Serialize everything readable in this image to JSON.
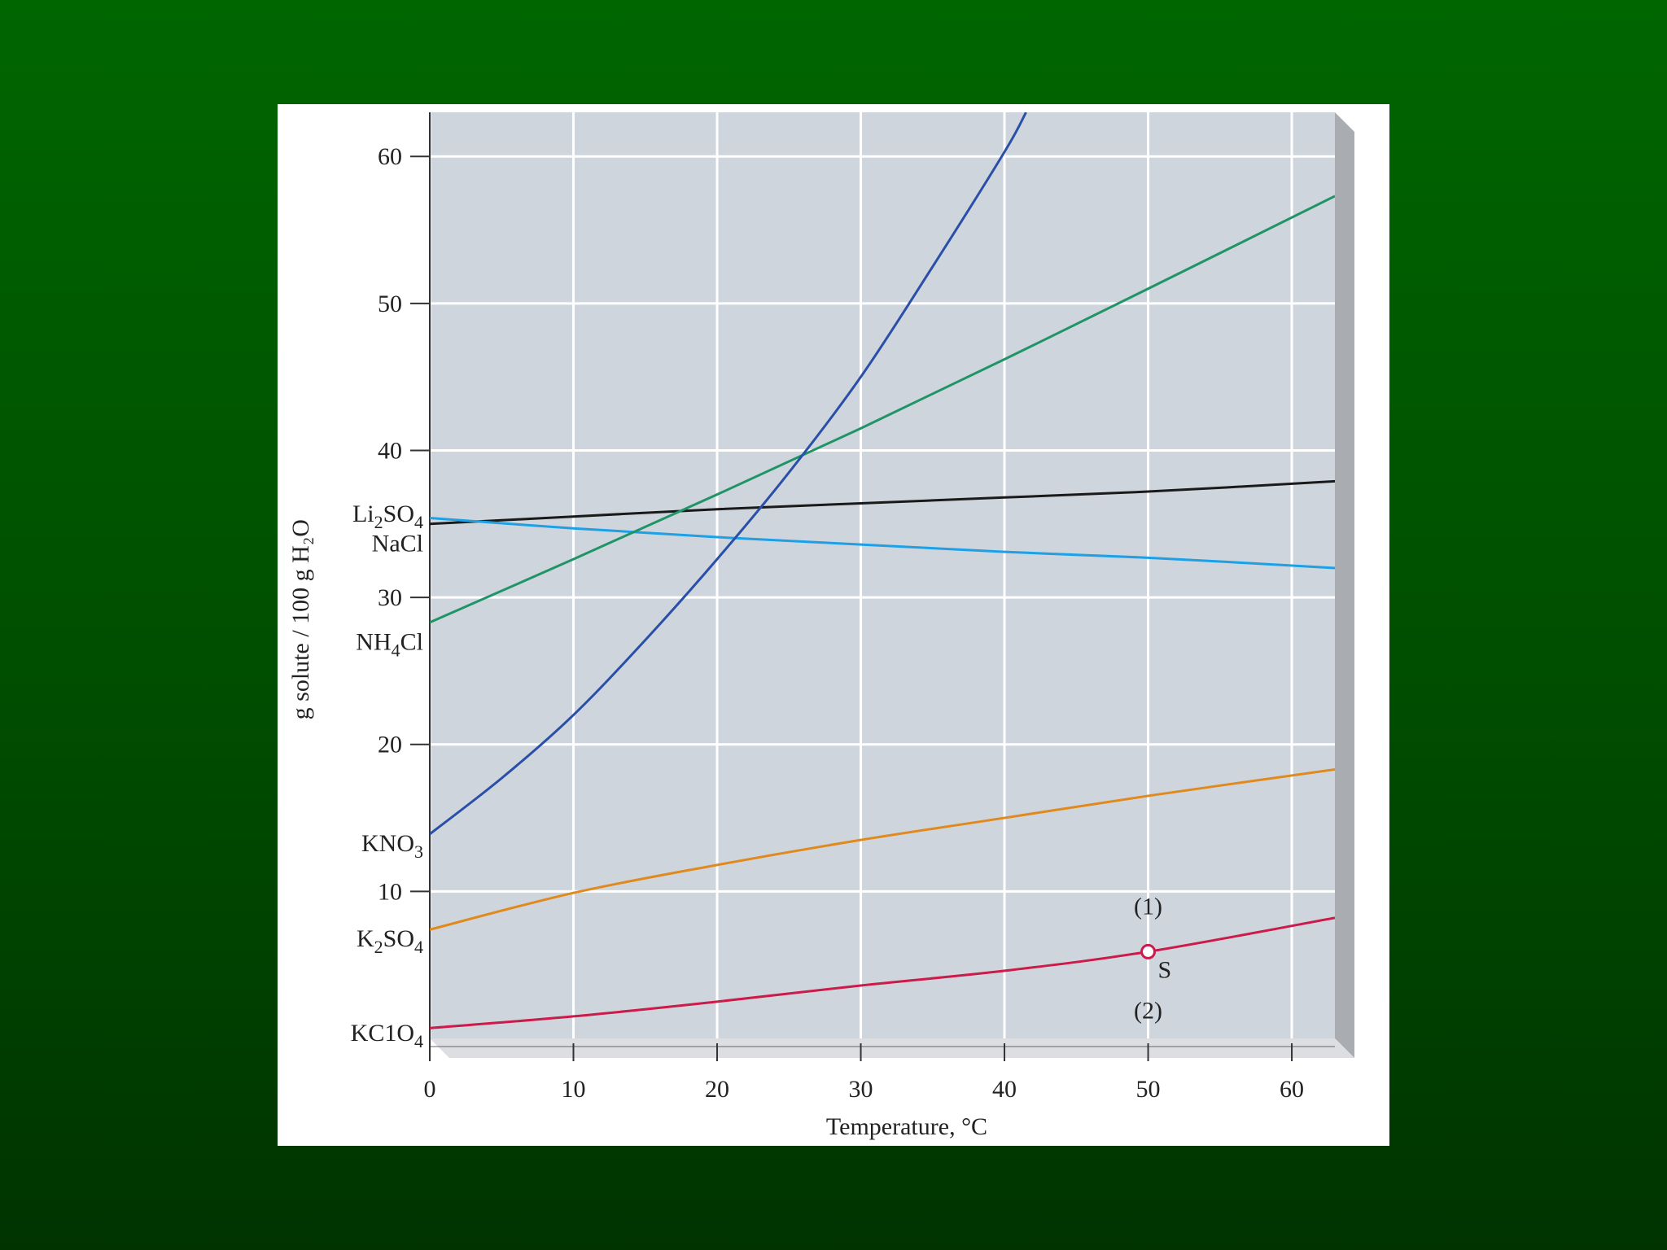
{
  "chart_data": {
    "type": "line",
    "xlabel": "Temperature, °C",
    "ylabel": "g solute / 100 g H₂O",
    "xlim": [
      0,
      63
    ],
    "ylim": [
      0,
      63
    ],
    "xticks": [
      0,
      10,
      20,
      30,
      40,
      50,
      60
    ],
    "yticks": [
      10,
      20,
      30,
      40,
      50,
      60
    ],
    "grid": true,
    "legend": "none (series labeled at left axis)",
    "series": [
      {
        "name": "Li₂SO₄",
        "color": "#1a1a1a",
        "x": [
          0,
          10,
          20,
          30,
          40,
          50,
          63
        ],
        "y": [
          35.0,
          35.5,
          36.0,
          36.4,
          36.8,
          37.2,
          37.9
        ]
      },
      {
        "name": "NaCl",
        "color": "#1ea0e6",
        "x": [
          0,
          10,
          20,
          30,
          40,
          50,
          63
        ],
        "y": [
          35.4,
          34.7,
          34.1,
          33.6,
          33.1,
          32.7,
          32.0
        ]
      },
      {
        "name": "NH₄Cl",
        "color": "#1f9466",
        "x": [
          0,
          10,
          20,
          30,
          40,
          50,
          63
        ],
        "y": [
          28.3,
          32.6,
          37.0,
          41.5,
          46.2,
          51.0,
          57.3
        ]
      },
      {
        "name": "KNO₃",
        "color": "#2a4fa8",
        "x": [
          0,
          5,
          10,
          15,
          20,
          25,
          30,
          35,
          40,
          41.5
        ],
        "y": [
          13.9,
          17.7,
          22.0,
          27.1,
          32.6,
          38.5,
          45.0,
          52.5,
          60.3,
          63.0
        ]
      },
      {
        "name": "K₂SO₄",
        "color": "#e08a1e",
        "x": [
          0,
          10,
          20,
          30,
          40,
          50,
          63
        ],
        "y": [
          7.4,
          9.9,
          11.8,
          13.5,
          15.0,
          16.5,
          18.3
        ]
      },
      {
        "name": "KClO₄",
        "color": "#cc1a4a",
        "x": [
          0,
          10,
          20,
          30,
          40,
          50,
          63
        ],
        "y": [
          0.7,
          1.5,
          2.5,
          3.6,
          4.6,
          5.9,
          8.2
        ]
      }
    ],
    "series_labels": [
      {
        "base": "Li",
        "sub1": "2",
        "mid": "SO",
        "sub2": "4",
        "y": 35.7
      },
      {
        "base": "NaCl",
        "sub1": "",
        "mid": "",
        "sub2": "",
        "y": 33.7
      },
      {
        "base": "NH",
        "sub1": "4",
        "mid": "Cl",
        "sub2": "",
        "y": 27.0
      },
      {
        "base": "KNO",
        "sub1": "3",
        "mid": "",
        "sub2": "",
        "y": 13.3
      },
      {
        "base": "K",
        "sub1": "2",
        "mid": "SO",
        "sub2": "4",
        "y": 6.8
      },
      {
        "base": "KC1O",
        "sub1": "4",
        "mid": "",
        "sub2": "",
        "y": 0.4
      }
    ],
    "annotations": [
      {
        "id": "point-s",
        "text": "S",
        "x": 50,
        "y": 5.9
      },
      {
        "id": "region-1",
        "text": "(1)",
        "x": 50,
        "y": 9.0
      },
      {
        "id": "region-2",
        "text": "(2)",
        "x": 50,
        "y": 1.9
      }
    ]
  }
}
